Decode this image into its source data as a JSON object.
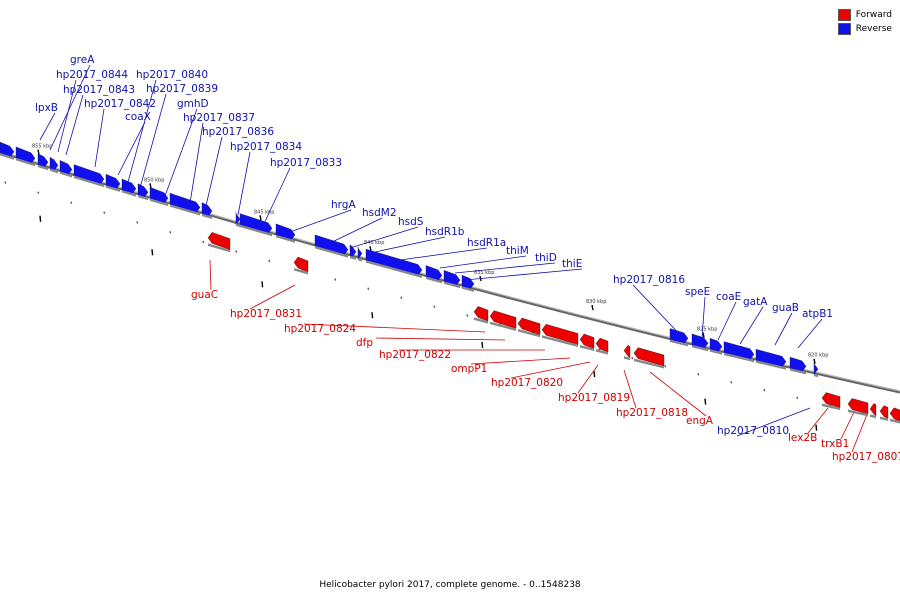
{
  "legend": {
    "forward_label": "Forward",
    "reverse_label": "Reverse",
    "forward_color": "#ee0000",
    "reverse_color": "#1010ee"
  },
  "caption": "Helicobacter pylori 2017, complete genome. - 0..1548238",
  "kbp_ticks": [
    "855 kbp",
    "850 kbp",
    "845 kbp",
    "840 kbp",
    "835 kbp",
    "830 kbp",
    "825 kbp",
    "820 kbp"
  ],
  "genes_reverse": [
    "lpxB",
    "greA",
    "hp2017_0844",
    "hp2017_0843",
    "hp2017_0842",
    "coaX",
    "hp2017_0840",
    "hp2017_0839",
    "gmhD",
    "hp2017_0837",
    "hp2017_0836",
    "hp2017_0834",
    "hp2017_0833",
    "hrgA",
    "hsdM2",
    "hsdS",
    "hsdR1b",
    "hsdR1a",
    "thiM",
    "thiD",
    "thiE",
    "hp2017_0816",
    "speE",
    "coaE",
    "gatA",
    "guaB",
    "atpB1",
    "hp2017_0810"
  ],
  "genes_forward": [
    "guaC",
    "hp2017_0831",
    "hp2017_0824",
    "dfp",
    "hp2017_0822",
    "ompP1",
    "hp2017_0820",
    "hp2017_0819",
    "hp2017_0818",
    "engA",
    "lex2B",
    "trxB1",
    "hp2017_0807"
  ]
}
